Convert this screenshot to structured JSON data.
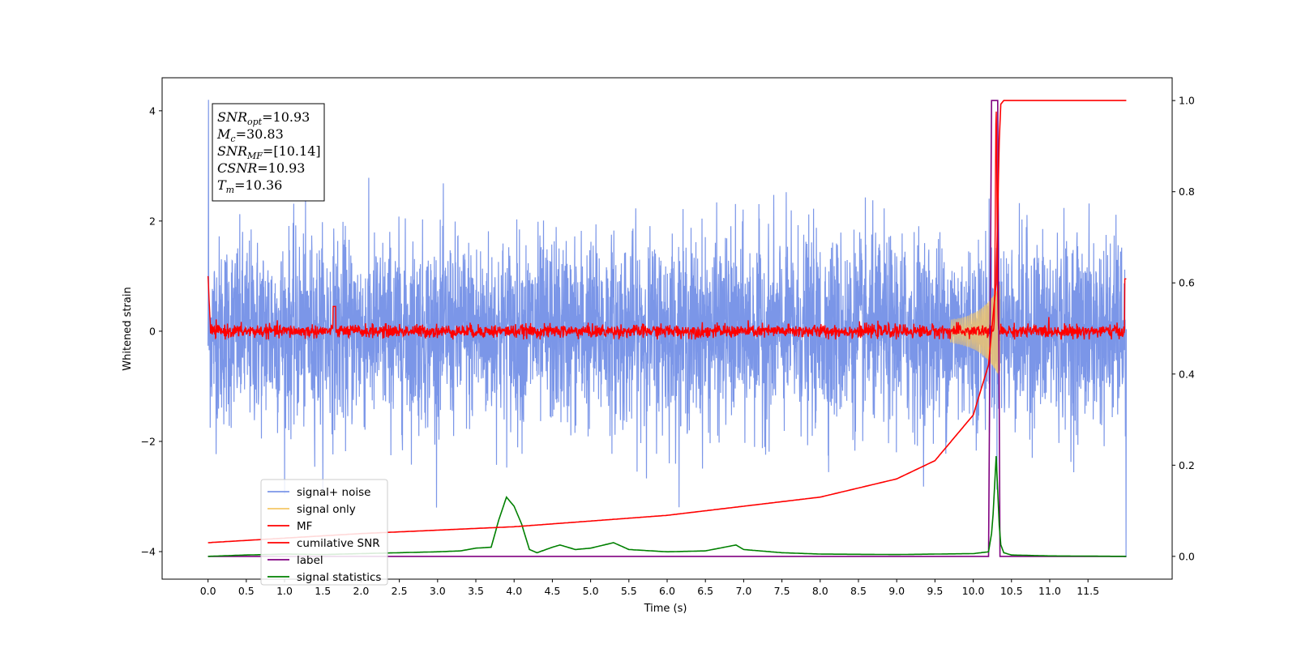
{
  "chart_data": {
    "type": "line",
    "title": "",
    "xlabel": "Time (s)",
    "ylabel": "Whitened strain",
    "xlim": [
      -0.6,
      12.6
    ],
    "ylim": [
      -4.5,
      4.6
    ],
    "y2lim": [
      -0.05,
      1.05
    ],
    "xticks": [
      "0.0",
      "0.5",
      "1.0",
      "1.5",
      "2.0",
      "2.5",
      "3.0",
      "3.5",
      "4.0",
      "4.5",
      "5.0",
      "5.5",
      "6.0",
      "6.5",
      "7.0",
      "7.5",
      "8.0",
      "8.5",
      "9.0",
      "9.5",
      "10.0",
      "10.5",
      "11.0",
      "11.5"
    ],
    "yticks": [
      "4",
      "2",
      "0",
      "−2",
      "−4"
    ],
    "y2ticks": [
      "0.0",
      "0.2",
      "0.4",
      "0.6",
      "0.8",
      "1.0"
    ],
    "grid": false,
    "legend_position": "lower-left",
    "annotation": {
      "lines": [
        {
          "var": "SNR",
          "sub": "opt",
          "value": "=10.93"
        },
        {
          "var": "M",
          "sub": "c",
          "value": "=30.83"
        },
        {
          "var": "SNR",
          "sub": "MF",
          "value": "=[10.14]"
        },
        {
          "var": "CSNR",
          "sub": "",
          "value": "=10.93"
        },
        {
          "var": "T",
          "sub": "m",
          "value": "=10.36"
        }
      ]
    },
    "series": [
      {
        "name": "signal+ noise",
        "color": "#7b96e8",
        "axis": "left",
        "approx_range": [
          -3.2,
          4.2
        ]
      },
      {
        "name": "signal only",
        "color": "#f5c766",
        "axis": "left",
        "chirp_end": 10.35
      },
      {
        "name": "MF",
        "color": "#ff0000",
        "axis": "left",
        "peak_time": 10.3,
        "peak_value": 4.0
      },
      {
        "name": "cumilative SNR",
        "color": "#ff0000",
        "axis": "right",
        "x": [
          0.0,
          2.0,
          4.0,
          6.0,
          8.0,
          9.0,
          9.5,
          10.0,
          10.2,
          10.3,
          10.35,
          10.4,
          12.0
        ],
        "values": [
          0.03,
          0.05,
          0.065,
          0.09,
          0.13,
          0.17,
          0.21,
          0.31,
          0.42,
          0.6,
          0.99,
          1.0,
          1.0
        ]
      },
      {
        "name": "label",
        "color": "#800080",
        "axis": "right",
        "x": [
          0.0,
          10.2,
          10.24,
          10.32,
          10.35,
          12.0
        ],
        "values": [
          0.0,
          0.0,
          1.0,
          1.0,
          0.0,
          0.0
        ]
      },
      {
        "name": "signal statistics",
        "color": "#008000",
        "axis": "right",
        "x": [
          0.0,
          0.5,
          1.0,
          1.5,
          2.0,
          2.5,
          3.0,
          3.3,
          3.5,
          3.7,
          3.8,
          3.9,
          4.0,
          4.1,
          4.2,
          4.3,
          4.5,
          4.6,
          4.8,
          5.0,
          5.3,
          5.5,
          6.0,
          6.5,
          6.9,
          7.0,
          7.5,
          8.0,
          9.0,
          10.0,
          10.2,
          10.25,
          10.3,
          10.35,
          10.4,
          10.5,
          11.0,
          12.0
        ],
        "values": [
          0.0,
          0.003,
          0.005,
          0.004,
          0.006,
          0.008,
          0.01,
          0.012,
          0.018,
          0.02,
          0.08,
          0.13,
          0.11,
          0.07,
          0.015,
          0.008,
          0.02,
          0.025,
          0.015,
          0.018,
          0.03,
          0.015,
          0.01,
          0.012,
          0.025,
          0.015,
          0.008,
          0.005,
          0.004,
          0.006,
          0.01,
          0.06,
          0.22,
          0.03,
          0.008,
          0.003,
          0.001,
          0.0
        ]
      }
    ]
  }
}
